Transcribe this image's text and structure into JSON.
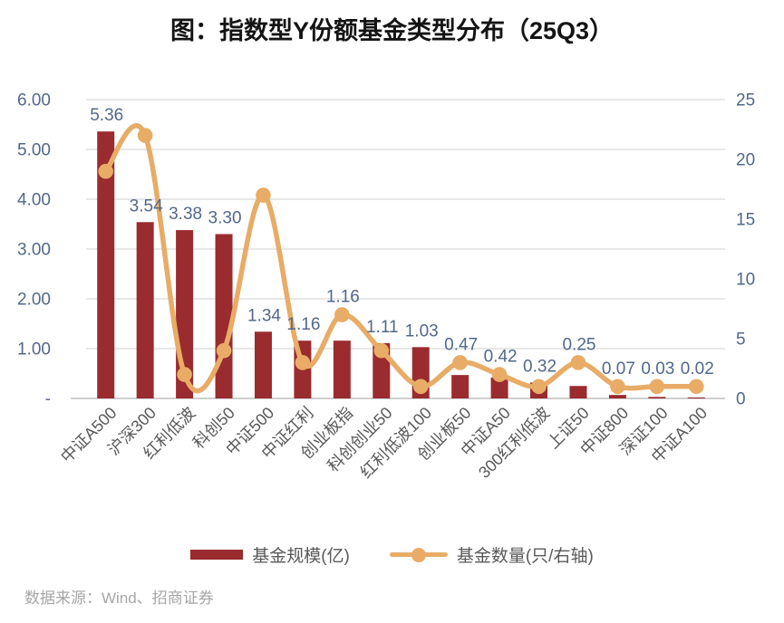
{
  "title": "图：指数型Y份额基金类型分布（25Q3）",
  "source": "数据来源：Wind、招商证券",
  "colors": {
    "bar": "#9A2B2F",
    "line": "#E8AC67",
    "axis_text": "#52688A",
    "category_text": "#595959",
    "grid": "#D9D9D9",
    "axis_line": "#BFBFBF",
    "legend_text": "#595959",
    "source_text": "#A6A6A6",
    "title_text": "#141414"
  },
  "legend": {
    "bar_label": "基金规模(亿)",
    "line_label": "基金数量(只/右轴)"
  },
  "chart_data": {
    "type": "bar+line combo",
    "title": "图：指数型Y份额基金类型分布（25Q3）",
    "categories": [
      "中证A500",
      "沪深300",
      "红利低波",
      "科创50",
      "中证500",
      "中证红利",
      "创业板指",
      "科创创业50",
      "红利低波100",
      "创业板50",
      "中证A50",
      "300红利低波",
      "上证50",
      "中证800",
      "深证100",
      "中证A100"
    ],
    "series": [
      {
        "name": "基金规模(亿)",
        "type": "bar",
        "axis": "left",
        "values": [
          5.36,
          3.54,
          3.38,
          3.3,
          1.34,
          1.16,
          1.16,
          1.11,
          1.03,
          0.47,
          0.42,
          0.32,
          0.25,
          0.07,
          0.03,
          0.02
        ]
      },
      {
        "name": "基金数量(只/右轴)",
        "type": "line",
        "axis": "right",
        "values": [
          19,
          22,
          2,
          4,
          17,
          3,
          7,
          4,
          1,
          3,
          2,
          1,
          3,
          1,
          1,
          1
        ]
      }
    ],
    "bar_labels": [
      "5.36",
      "3.54",
      "3.38",
      "3.30",
      "1.34",
      "1.16",
      "1.16",
      "1.11",
      "1.03",
      "0.47",
      "0.42",
      "0.32",
      "0.25",
      "0.07",
      "0.03",
      "0.02"
    ],
    "left_axis": {
      "min": 0,
      "max": 6,
      "tick_labels": [
        "6.00",
        "5.00",
        "4.00",
        "3.00",
        "2.00",
        "1.00",
        "-"
      ]
    },
    "right_axis": {
      "min": 0,
      "max": 25,
      "tick_labels": [
        "25",
        "20",
        "15",
        "10",
        "5",
        "0"
      ]
    },
    "grid": "horizontal",
    "legend_position": "bottom"
  }
}
